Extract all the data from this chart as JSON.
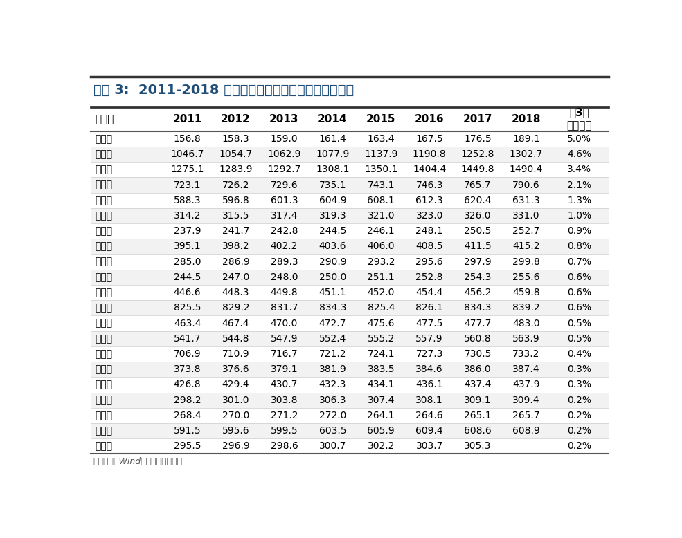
{
  "title": "图表 3:  2011-2018 年广东省各地级市常住人口（万人）",
  "footer": "资料来源：Wind，国盛证券研究所",
  "columns": [
    "地级市",
    "2011",
    "2012",
    "2013",
    "2014",
    "2015",
    "2016",
    "2017",
    "2018",
    "近3年\n年均增速"
  ],
  "rows": [
    [
      "珠海市",
      "156.8",
      "158.3",
      "159.0",
      "161.4",
      "163.4",
      "167.5",
      "176.5",
      "189.1",
      "5.0%"
    ],
    [
      "深圳市",
      "1046.7",
      "1054.7",
      "1062.9",
      "1077.9",
      "1137.9",
      "1190.8",
      "1252.8",
      "1302.7",
      "4.6%"
    ],
    [
      "广州市",
      "1275.1",
      "1283.9",
      "1292.7",
      "1308.1",
      "1350.1",
      "1404.4",
      "1449.8",
      "1490.4",
      "3.4%"
    ],
    [
      "佛山市",
      "723.1",
      "726.2",
      "729.6",
      "735.1",
      "743.1",
      "746.3",
      "765.7",
      "790.6",
      "2.1%"
    ],
    [
      "茂名市",
      "588.3",
      "596.8",
      "601.3",
      "604.9",
      "608.1",
      "612.3",
      "620.4",
      "631.3",
      "1.3%"
    ],
    [
      "中山市",
      "314.2",
      "315.5",
      "317.4",
      "319.3",
      "321.0",
      "323.0",
      "326.0",
      "331.0",
      "1.0%"
    ],
    [
      "云浮市",
      "237.9",
      "241.7",
      "242.8",
      "244.5",
      "246.1",
      "248.1",
      "250.5",
      "252.7",
      "0.9%"
    ],
    [
      "肇庆市",
      "395.1",
      "398.2",
      "402.2",
      "403.6",
      "406.0",
      "408.5",
      "411.5",
      "415.2",
      "0.8%"
    ],
    [
      "韶关市",
      "285.0",
      "286.9",
      "289.3",
      "290.9",
      "293.2",
      "295.6",
      "297.9",
      "299.8",
      "0.7%"
    ],
    [
      "阳江市",
      "244.5",
      "247.0",
      "248.0",
      "250.0",
      "251.1",
      "252.8",
      "254.3",
      "255.6",
      "0.6%"
    ],
    [
      "江门市",
      "446.6",
      "448.3",
      "449.8",
      "451.1",
      "452.0",
      "454.4",
      "456.2",
      "459.8",
      "0.6%"
    ],
    [
      "东莞市",
      "825.5",
      "829.2",
      "831.7",
      "834.3",
      "825.4",
      "826.1",
      "834.3",
      "839.2",
      "0.6%"
    ],
    [
      "惠州市",
      "463.4",
      "467.4",
      "470.0",
      "472.7",
      "475.6",
      "477.5",
      "477.7",
      "483.0",
      "0.5%"
    ],
    [
      "汕头市",
      "541.7",
      "544.8",
      "547.9",
      "552.4",
      "555.2",
      "557.9",
      "560.8",
      "563.9",
      "0.5%"
    ],
    [
      "湛江市",
      "706.9",
      "710.9",
      "716.7",
      "721.2",
      "724.1",
      "727.3",
      "730.5",
      "733.2",
      "0.4%"
    ],
    [
      "清远市",
      "373.8",
      "376.6",
      "379.1",
      "381.9",
      "383.5",
      "384.6",
      "386.0",
      "387.4",
      "0.3%"
    ],
    [
      "梅州市",
      "426.8",
      "429.4",
      "430.7",
      "432.3",
      "434.1",
      "436.1",
      "437.4",
      "437.9",
      "0.3%"
    ],
    [
      "河源市",
      "298.2",
      "301.0",
      "303.8",
      "306.3",
      "307.4",
      "308.1",
      "309.1",
      "309.4",
      "0.2%"
    ],
    [
      "潮州市",
      "268.4",
      "270.0",
      "271.2",
      "272.0",
      "264.1",
      "264.6",
      "265.1",
      "265.7",
      "0.2%"
    ],
    [
      "揭阳市",
      "591.5",
      "595.6",
      "599.5",
      "603.5",
      "605.9",
      "609.4",
      "608.6",
      "608.9",
      "0.2%"
    ],
    [
      "汕尾市",
      "295.5",
      "296.9",
      "298.6",
      "300.7",
      "302.2",
      "303.7",
      "305.3",
      "",
      "0.2%"
    ]
  ],
  "title_color": "#1F4E79",
  "row_odd_bg": "#FFFFFF",
  "row_even_bg": "#F2F2F2",
  "text_color": "#000000",
  "title_fontsize": 14,
  "header_fontsize": 11,
  "cell_fontsize": 10,
  "footer_fontsize": 9
}
